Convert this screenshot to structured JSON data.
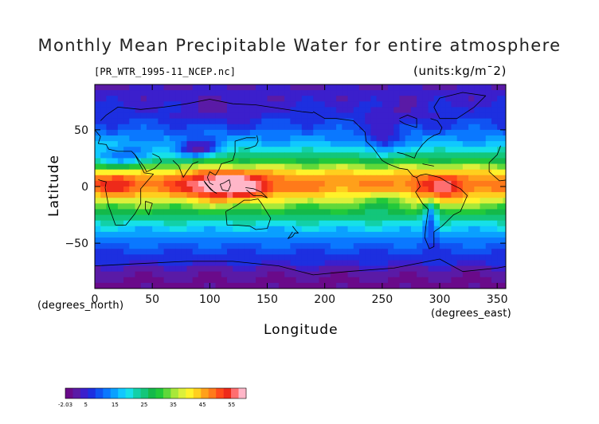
{
  "chart_data": {
    "type": "heatmap",
    "title": "Monthly Mean Precipitable Water for entire atmosphere",
    "file_label": "[PR_WTR_1995-11_NCEP.nc]",
    "units_label": "(units:kg/m¯2)",
    "xlabel": "Longitude",
    "ylabel": "Latitude",
    "x_unit": "(degrees_east)",
    "y_unit": "(degrees_north)",
    "xlim": [
      0,
      357.5
    ],
    "ylim": [
      -90,
      90
    ],
    "x_ticks": [
      0,
      50,
      100,
      150,
      200,
      250,
      300,
      350
    ],
    "y_ticks": [
      50,
      0,
      -50
    ],
    "colorbar": {
      "min": -2.03,
      "max": 60,
      "tick_labels": [
        "-2.03",
        "5",
        "15",
        "25",
        "35",
        "45",
        "55"
      ],
      "tick_values": [
        -2.03,
        5,
        15,
        25,
        35,
        45,
        55
      ]
    },
    "colors": [
      "#6a0a8a",
      "#5a1aa6",
      "#3b1fcc",
      "#1d2fe0",
      "#1053f2",
      "#0a78ff",
      "#0aa0ff",
      "#10c8ff",
      "#16e0e8",
      "#12d0a8",
      "#13c67a",
      "#14b94a",
      "#22c93a",
      "#5fd83a",
      "#a8e83a",
      "#dcf03a",
      "#fff22a",
      "#ffcf1e",
      "#ffa01a",
      "#ff7a1a",
      "#ff4a1a",
      "#ee2a1a",
      "#ff6e70",
      "#ffb6c8"
    ],
    "zonal_mean_profile": {
      "latitude": [
        90,
        80,
        70,
        60,
        50,
        40,
        30,
        20,
        10,
        0,
        -10,
        -20,
        -30,
        -40,
        -50,
        -60,
        -70,
        -80,
        -90
      ],
      "value": [
        3,
        4,
        6,
        8,
        10,
        15,
        22,
        32,
        45,
        48,
        40,
        30,
        22,
        16,
        11,
        8,
        5,
        3,
        1
      ]
    }
  }
}
